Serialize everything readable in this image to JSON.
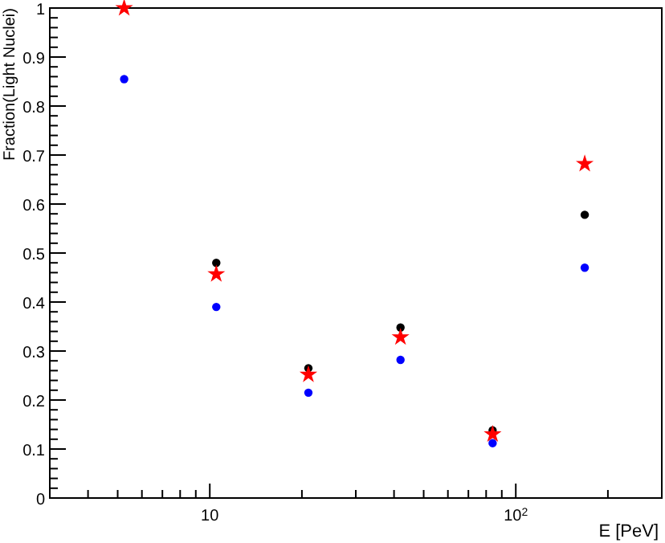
{
  "chart_data": {
    "type": "scatter",
    "xlabel": "E [PeV]",
    "ylabel": "Fraction(Light Nuclei)",
    "log": "x",
    "grid": false,
    "x": [
      5.25,
      10.5,
      21,
      42,
      84,
      168
    ],
    "xlim": [
      3,
      300
    ],
    "xticks": [
      {
        "value": 3,
        "label": null
      },
      {
        "value": 4,
        "label": null
      },
      {
        "value": 5,
        "label": null
      },
      {
        "value": 6,
        "label": null
      },
      {
        "value": 7,
        "label": null
      },
      {
        "value": 8,
        "label": null
      },
      {
        "value": 9,
        "label": null
      },
      {
        "value": 10,
        "label": "10"
      },
      {
        "value": 20,
        "label": null
      },
      {
        "value": 30,
        "label": null
      },
      {
        "value": 40,
        "label": null
      },
      {
        "value": 50,
        "label": null
      },
      {
        "value": 60,
        "label": null
      },
      {
        "value": 70,
        "label": null
      },
      {
        "value": 80,
        "label": null
      },
      {
        "value": 90,
        "label": null
      },
      {
        "value": 100,
        "label": "10$^{2}$"
      },
      {
        "value": 200,
        "label": null
      },
      {
        "value": 300,
        "label": null
      }
    ],
    "ylim": [
      0,
      1
    ],
    "yticks": [
      0,
      {
        "value": 0.02,
        "label": null
      },
      {
        "value": 0.04,
        "label": null
      },
      {
        "value": 0.06,
        "label": null
      },
      {
        "value": 0.08,
        "label": null
      },
      0.1,
      {
        "value": 0.12,
        "label": null
      },
      {
        "value": 0.14,
        "label": null
      },
      {
        "value": 0.16,
        "label": null
      },
      {
        "value": 0.18,
        "label": null
      },
      0.2,
      {
        "value": 0.22,
        "label": null
      },
      {
        "value": 0.24,
        "label": null
      },
      {
        "value": 0.26,
        "label": null
      },
      {
        "value": 0.28,
        "label": null
      },
      0.3,
      {
        "value": 0.32,
        "label": null
      },
      {
        "value": 0.34,
        "label": null
      },
      {
        "value": 0.36,
        "label": null
      },
      {
        "value": 0.38,
        "label": null
      },
      0.4,
      {
        "value": 0.42,
        "label": null
      },
      {
        "value": 0.44,
        "label": null
      },
      {
        "value": 0.46,
        "label": null
      },
      {
        "value": 0.48,
        "label": null
      },
      0.5,
      {
        "value": 0.52,
        "label": null
      },
      {
        "value": 0.54,
        "label": null
      },
      {
        "value": 0.56,
        "label": null
      },
      {
        "value": 0.58,
        "label": null
      },
      0.6,
      {
        "value": 0.62,
        "label": null
      },
      {
        "value": 0.64,
        "label": null
      },
      {
        "value": 0.66,
        "label": null
      },
      {
        "value": 0.68,
        "label": null
      },
      0.7,
      {
        "value": 0.72,
        "label": null
      },
      {
        "value": 0.74,
        "label": null
      },
      {
        "value": 0.76,
        "label": null
      },
      {
        "value": 0.78,
        "label": null
      },
      0.8,
      {
        "value": 0.82,
        "label": null
      },
      {
        "value": 0.84,
        "label": null
      },
      {
        "value": 0.86,
        "label": null
      },
      {
        "value": 0.88,
        "label": null
      },
      0.9,
      {
        "value": 0.92,
        "label": null
      },
      {
        "value": 0.94,
        "label": null
      },
      {
        "value": 0.96,
        "label": null
      },
      {
        "value": 0.98,
        "label": null
      },
      1
    ],
    "series": [
      {
        "color": "#000000",
        "marker": "circle",
        "values": [
          null,
          0.48,
          0.265,
          0.348,
          0.138,
          0.578
        ]
      },
      {
        "color": "#0000ff",
        "marker": "circle",
        "values": [
          0.855,
          0.39,
          0.215,
          0.282,
          0.112,
          0.47
        ]
      },
      {
        "color": "#ff0000",
        "marker": "star",
        "values": [
          1.0,
          0.457,
          0.252,
          0.328,
          0.13,
          0.682
        ]
      }
    ]
  }
}
